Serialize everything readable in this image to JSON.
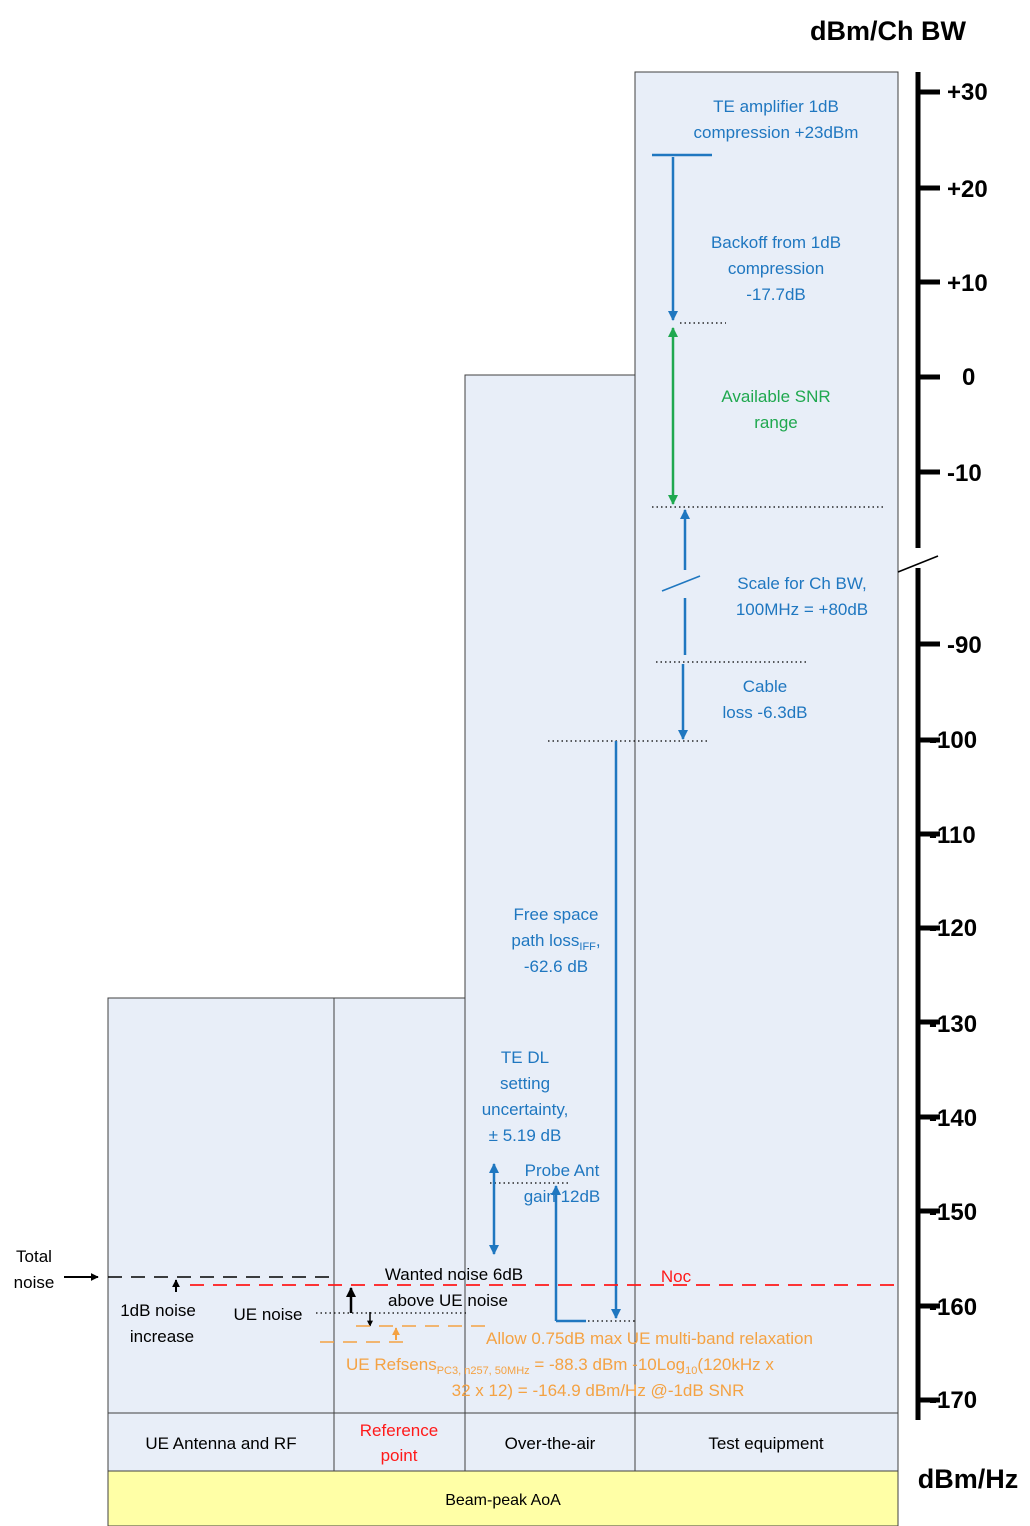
{
  "axis": {
    "top_title": "dBm/Ch BW",
    "bottom_title": "dBm/Hz",
    "upper_ticks": [
      "+30",
      "+20",
      "+10",
      "0",
      "-10"
    ],
    "lower_ticks": [
      "-90",
      "-100",
      "-110",
      "-120",
      "-130",
      "-140",
      "-150",
      "-160",
      "-170"
    ]
  },
  "columns": {
    "ue": "UE Antenna and RF",
    "ref": [
      "Reference",
      "point"
    ],
    "ota": "Over-the-air",
    "te": "Test equipment"
  },
  "footer": "Beam-peak AoA",
  "labels": {
    "te_amp": [
      "TE amplifier 1dB",
      "compression +23dBm"
    ],
    "backoff": [
      "Backoff from 1dB",
      "compression",
      "-17.7dB"
    ],
    "snr": [
      "Available SNR",
      "range"
    ],
    "scale": [
      "Scale for Ch BW,",
      "100MHz = +80dB"
    ],
    "cable": [
      "Cable",
      "loss -6.3dB"
    ],
    "fspl": {
      "line1": "Free space",
      "line2_main": "path loss",
      "line2_sub": "IFF",
      "line2_tail": ",",
      "line3": "-62.6 dB"
    },
    "te_dl": [
      "TE DL",
      "setting",
      "uncertainty,",
      "± 5.19 dB"
    ],
    "probe": [
      "Probe Ant",
      "gain 12dB"
    ],
    "noc": "Noc",
    "total_noise": [
      "Total",
      "noise"
    ],
    "noise_inc": [
      "1dB noise",
      "increase"
    ],
    "wanted": [
      "Wanted noise 6dB",
      "above UE noise"
    ],
    "ue_noise": "UE noise",
    "relax": "Allow 0.75dB max UE multi-band relaxation",
    "refsens": {
      "a": "UE Refsens",
      "a_sub": "PC3, n257, 50MHz",
      "b": " = -88.3 dBm -10Log",
      "b_sub": "10",
      "c": "(120kHz x",
      "line2": "32 x 12) = -164.9 dBm/Hz @-1dB SNR"
    }
  },
  "colors": {
    "panel_fill": "#e8eef8",
    "panel_stroke": "#404040",
    "footer_fill": "#ffffa6",
    "blue": "#1f77c0",
    "green": "#1fa84f",
    "orange": "#f4a243",
    "red": "#ff1a1a"
  }
}
